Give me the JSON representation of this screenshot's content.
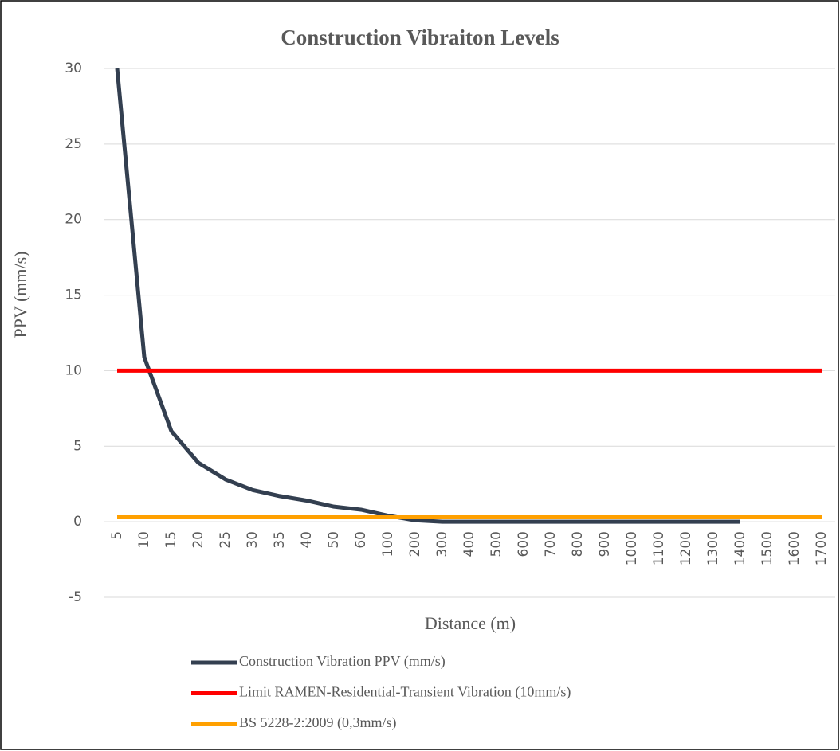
{
  "chart_data": {
    "type": "line",
    "title": "Construction Vibraiton Levels",
    "x_label": "Distance (m)",
    "y_label": "PPV (mm/s)",
    "categories": [
      5,
      10,
      15,
      20,
      25,
      30,
      35,
      40,
      50,
      60,
      100,
      200,
      300,
      400,
      500,
      600,
      700,
      800,
      900,
      1000,
      1100,
      1200,
      1300,
      1400,
      1500,
      1600,
      1700
    ],
    "series": [
      {
        "name": "Construction Vibration PPV (mm/s)",
        "color": "#333f50",
        "values": [
          30,
          10.9,
          6,
          3.9,
          2.8,
          2.1,
          1.7,
          1.4,
          1.0,
          0.8,
          0.4,
          0.1,
          0,
          0,
          0,
          0,
          0,
          0,
          0,
          0,
          0,
          0,
          0,
          0,
          null,
          null,
          null
        ]
      },
      {
        "name": "Limit RAMEN-Residential-Transient Vibration (10mm/s)",
        "color": "#ff0000",
        "values": [
          10,
          10,
          10,
          10,
          10,
          10,
          10,
          10,
          10,
          10,
          10,
          10,
          10,
          10,
          10,
          10,
          10,
          10,
          10,
          10,
          10,
          10,
          10,
          10,
          10,
          10,
          10
        ]
      },
      {
        "name": "BS 5228-2:2009 (0,3mm/s)",
        "color": "#ffa000",
        "values": [
          0.3,
          0.3,
          0.3,
          0.3,
          0.3,
          0.3,
          0.3,
          0.3,
          0.3,
          0.3,
          0.3,
          0.3,
          0.3,
          0.3,
          0.3,
          0.3,
          0.3,
          0.3,
          0.3,
          0.3,
          0.3,
          0.3,
          0.3,
          0.3,
          0.3,
          0.3,
          0.3
        ]
      }
    ],
    "ylim": [
      -5,
      30
    ],
    "yticks": [
      -5,
      0,
      5,
      10,
      15,
      20,
      25,
      30
    ],
    "grid": true,
    "legend": "bottom-left"
  }
}
